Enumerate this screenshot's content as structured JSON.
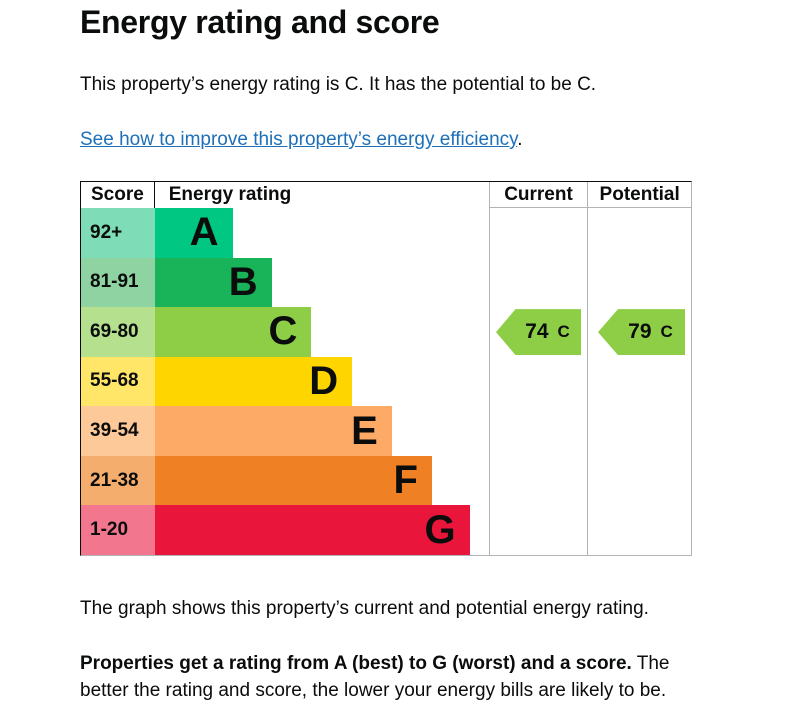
{
  "page": {
    "title": "Energy rating and score",
    "intro": "This property’s energy rating is C. It has the potential to be C.",
    "improve_link": "See how to improve this property’s energy efficiency",
    "improve_link_suffix": ".",
    "graph_caption": "The graph shows this property’s current and potential energy rating.",
    "explainer_bold": "Properties get a rating from A (best) to G (worst) and a score.",
    "explainer_rest": " The better the rating and score, the lower your energy bills are likely to be."
  },
  "colors": {
    "text": "#0b0c0c",
    "link": "#1d70b8",
    "border_dark": "#0b0c0c",
    "border_light": "#b1b4b6"
  },
  "chart_data": {
    "type": "bar",
    "title": "Energy rating and score",
    "headers": {
      "score": "Score",
      "rating": "Energy rating",
      "current": "Current",
      "potential": "Potential"
    },
    "bands": [
      {
        "letter": "A",
        "score_range": "92+",
        "color": "#00c781",
        "tint": "#7edcb7",
        "width_pct": 23.3
      },
      {
        "letter": "B",
        "score_range": "81-91",
        "color": "#19b459",
        "tint": "#8fd3a2",
        "width_pct": 35.0
      },
      {
        "letter": "C",
        "score_range": "69-80",
        "color": "#8dce46",
        "tint": "#b5e08d",
        "width_pct": 46.9
      },
      {
        "letter": "D",
        "score_range": "55-68",
        "color": "#ffd500",
        "tint": "#ffe668",
        "width_pct": 59.1
      },
      {
        "letter": "E",
        "score_range": "39-54",
        "color": "#fcaa65",
        "tint": "#fdc998",
        "width_pct": 71.0
      },
      {
        "letter": "F",
        "score_range": "21-38",
        "color": "#ef8023",
        "tint": "#f4ad6d",
        "width_pct": 83.0
      },
      {
        "letter": "G",
        "score_range": "1-20",
        "color": "#e9153b",
        "tint": "#f2778e",
        "width_pct": 94.3
      }
    ],
    "current": {
      "value": "74",
      "letter": "C",
      "band_index": 2,
      "color": "#8dce46"
    },
    "potential": {
      "value": "79",
      "letter": "C",
      "band_index": 2,
      "color": "#8dce46"
    }
  }
}
